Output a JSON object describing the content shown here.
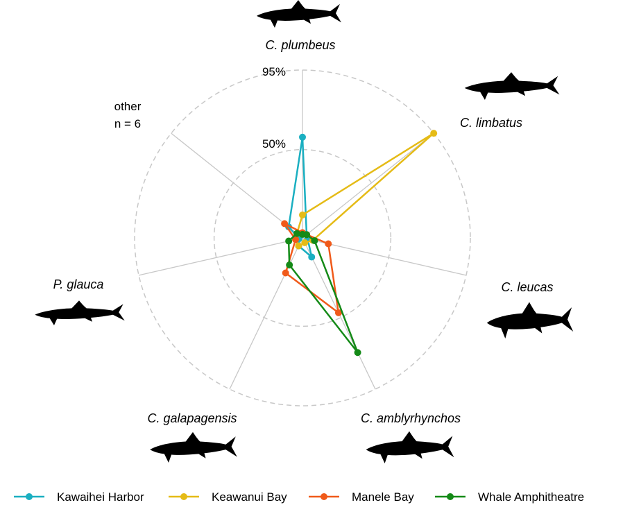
{
  "chart_data": {
    "type": "radar",
    "axes": [
      "C. plumbeus",
      "C. limbatus",
      "C. leucas",
      "C. amblyrhynchos",
      "C. galapagensis",
      "P. glauca",
      "other"
    ],
    "axis_label_style": [
      "italic",
      "italic",
      "italic",
      "italic",
      "italic",
      "italic",
      "normal"
    ],
    "other_label_lines": [
      "other",
      "n = 6"
    ],
    "rings": [
      {
        "value": 50,
        "label": "50%"
      },
      {
        "value": 95,
        "label": "95%"
      }
    ],
    "ring_style": "dashed",
    "rmax": 95,
    "series": [
      {
        "name": "Kawaihei Harbor",
        "color": "#1AAFC1",
        "values": [
          57,
          3,
          3,
          12,
          5,
          2,
          10
        ]
      },
      {
        "name": "Keawanui Bay",
        "color": "#E5BB16",
        "values": [
          13,
          95,
          6,
          3,
          5,
          4,
          4
        ]
      },
      {
        "name": "Manele Bay",
        "color": "#F05A1A",
        "values": [
          3,
          3,
          15,
          47,
          22,
          4,
          13
        ]
      },
      {
        "name": "Whale Amphitheatre",
        "color": "#148A17",
        "values": [
          2,
          3,
          7,
          72,
          17,
          8,
          4
        ]
      }
    ],
    "legend_position": "bottom",
    "silhouettes": [
      "shark-silhouette",
      "shark-silhouette",
      "shark-silhouette",
      "shark-silhouette",
      "shark-silhouette",
      "shark-silhouette"
    ]
  }
}
